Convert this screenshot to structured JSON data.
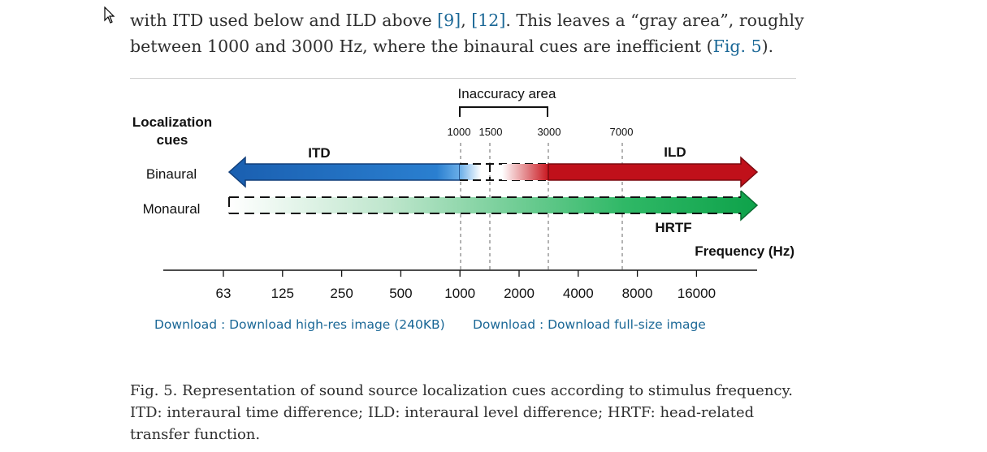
{
  "article": {
    "para_line1_text": "with ITD used below and ILD above ",
    "para_ref1": "[9]",
    "para_sep": ", ",
    "para_ref2": "[12]",
    "para_line1_end": ". This leaves a “gray area”, roughly",
    "para_line2_text": "between 1000 and 3000 Hz, where the binaural cues are inefficient (",
    "para_fig_link": "Fig. 5",
    "para_line2_end": ")."
  },
  "figure": {
    "inaccuracy_label": "Inaccuracy area",
    "localization_label_line1": "Localization",
    "localization_label_line2": "cues",
    "row_labels": [
      "Binaural",
      "Monaural"
    ],
    "arrow_labels": {
      "itd": "ITD",
      "ild": "ILD",
      "hrtf": "HRTF"
    },
    "marker_labels": [
      "1000",
      "1500",
      "3000",
      "7000"
    ],
    "axis_title": "Frequency (Hz)",
    "axis_ticks": [
      "63",
      "125",
      "250",
      "500",
      "1000",
      "2000",
      "4000",
      "8000",
      "16000"
    ],
    "colors": {
      "itd": "#1f6fc0",
      "ild": "#c0101a",
      "hrtf": "#14a84e"
    }
  },
  "downloads": {
    "highres_label": "Download : Download high-res image (240KB)",
    "fullsize_label": "Download : Download full-size image"
  },
  "caption": {
    "text": "Fig. 5. Representation of sound source localization cues according to stimulus frequency. ITD: interaural time difference; ILD: interaural level difference; HRTF: head-related transfer function."
  },
  "icons": {
    "cursor": "mouse-pointer-icon"
  }
}
